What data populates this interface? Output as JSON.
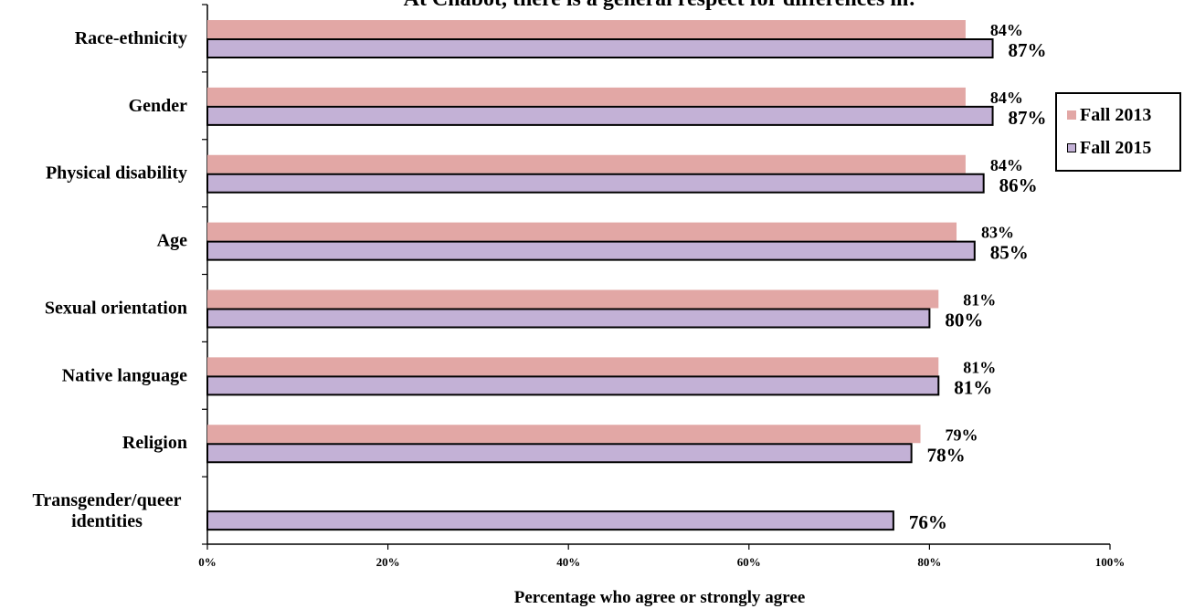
{
  "chart_data": {
    "type": "bar",
    "orientation": "horizontal",
    "title": "At Chabot, there is a general respect for differences in:",
    "xlabel": "Percentage who agree or strongly agree",
    "ylabel": "",
    "xlim": [
      0,
      100
    ],
    "x_ticks": [
      "0%",
      "20%",
      "40%",
      "60%",
      "80%",
      "100%"
    ],
    "categories": [
      "Race-ethnicity",
      "Gender",
      "Physical disability",
      "Age",
      "Sexual orientation",
      "Native language",
      "Religion",
      "Transgender/queer identities"
    ],
    "series": [
      {
        "name": "Fall 2013",
        "color": "#e2a7a5",
        "values": [
          84,
          84,
          84,
          83,
          81,
          81,
          79,
          null
        ],
        "labels": [
          "84%",
          "84%",
          "84%",
          "83%",
          "81%",
          "81%",
          "79%",
          ""
        ]
      },
      {
        "name": "Fall 2015",
        "color": "#c3b1d6",
        "values": [
          87,
          87,
          86,
          85,
          80,
          81,
          78,
          76
        ],
        "labels": [
          "87%",
          "87%",
          "86%",
          "85%",
          "80%",
          "81%",
          "78%",
          "76%"
        ]
      }
    ],
    "legend_position": "right",
    "grid": false
  }
}
